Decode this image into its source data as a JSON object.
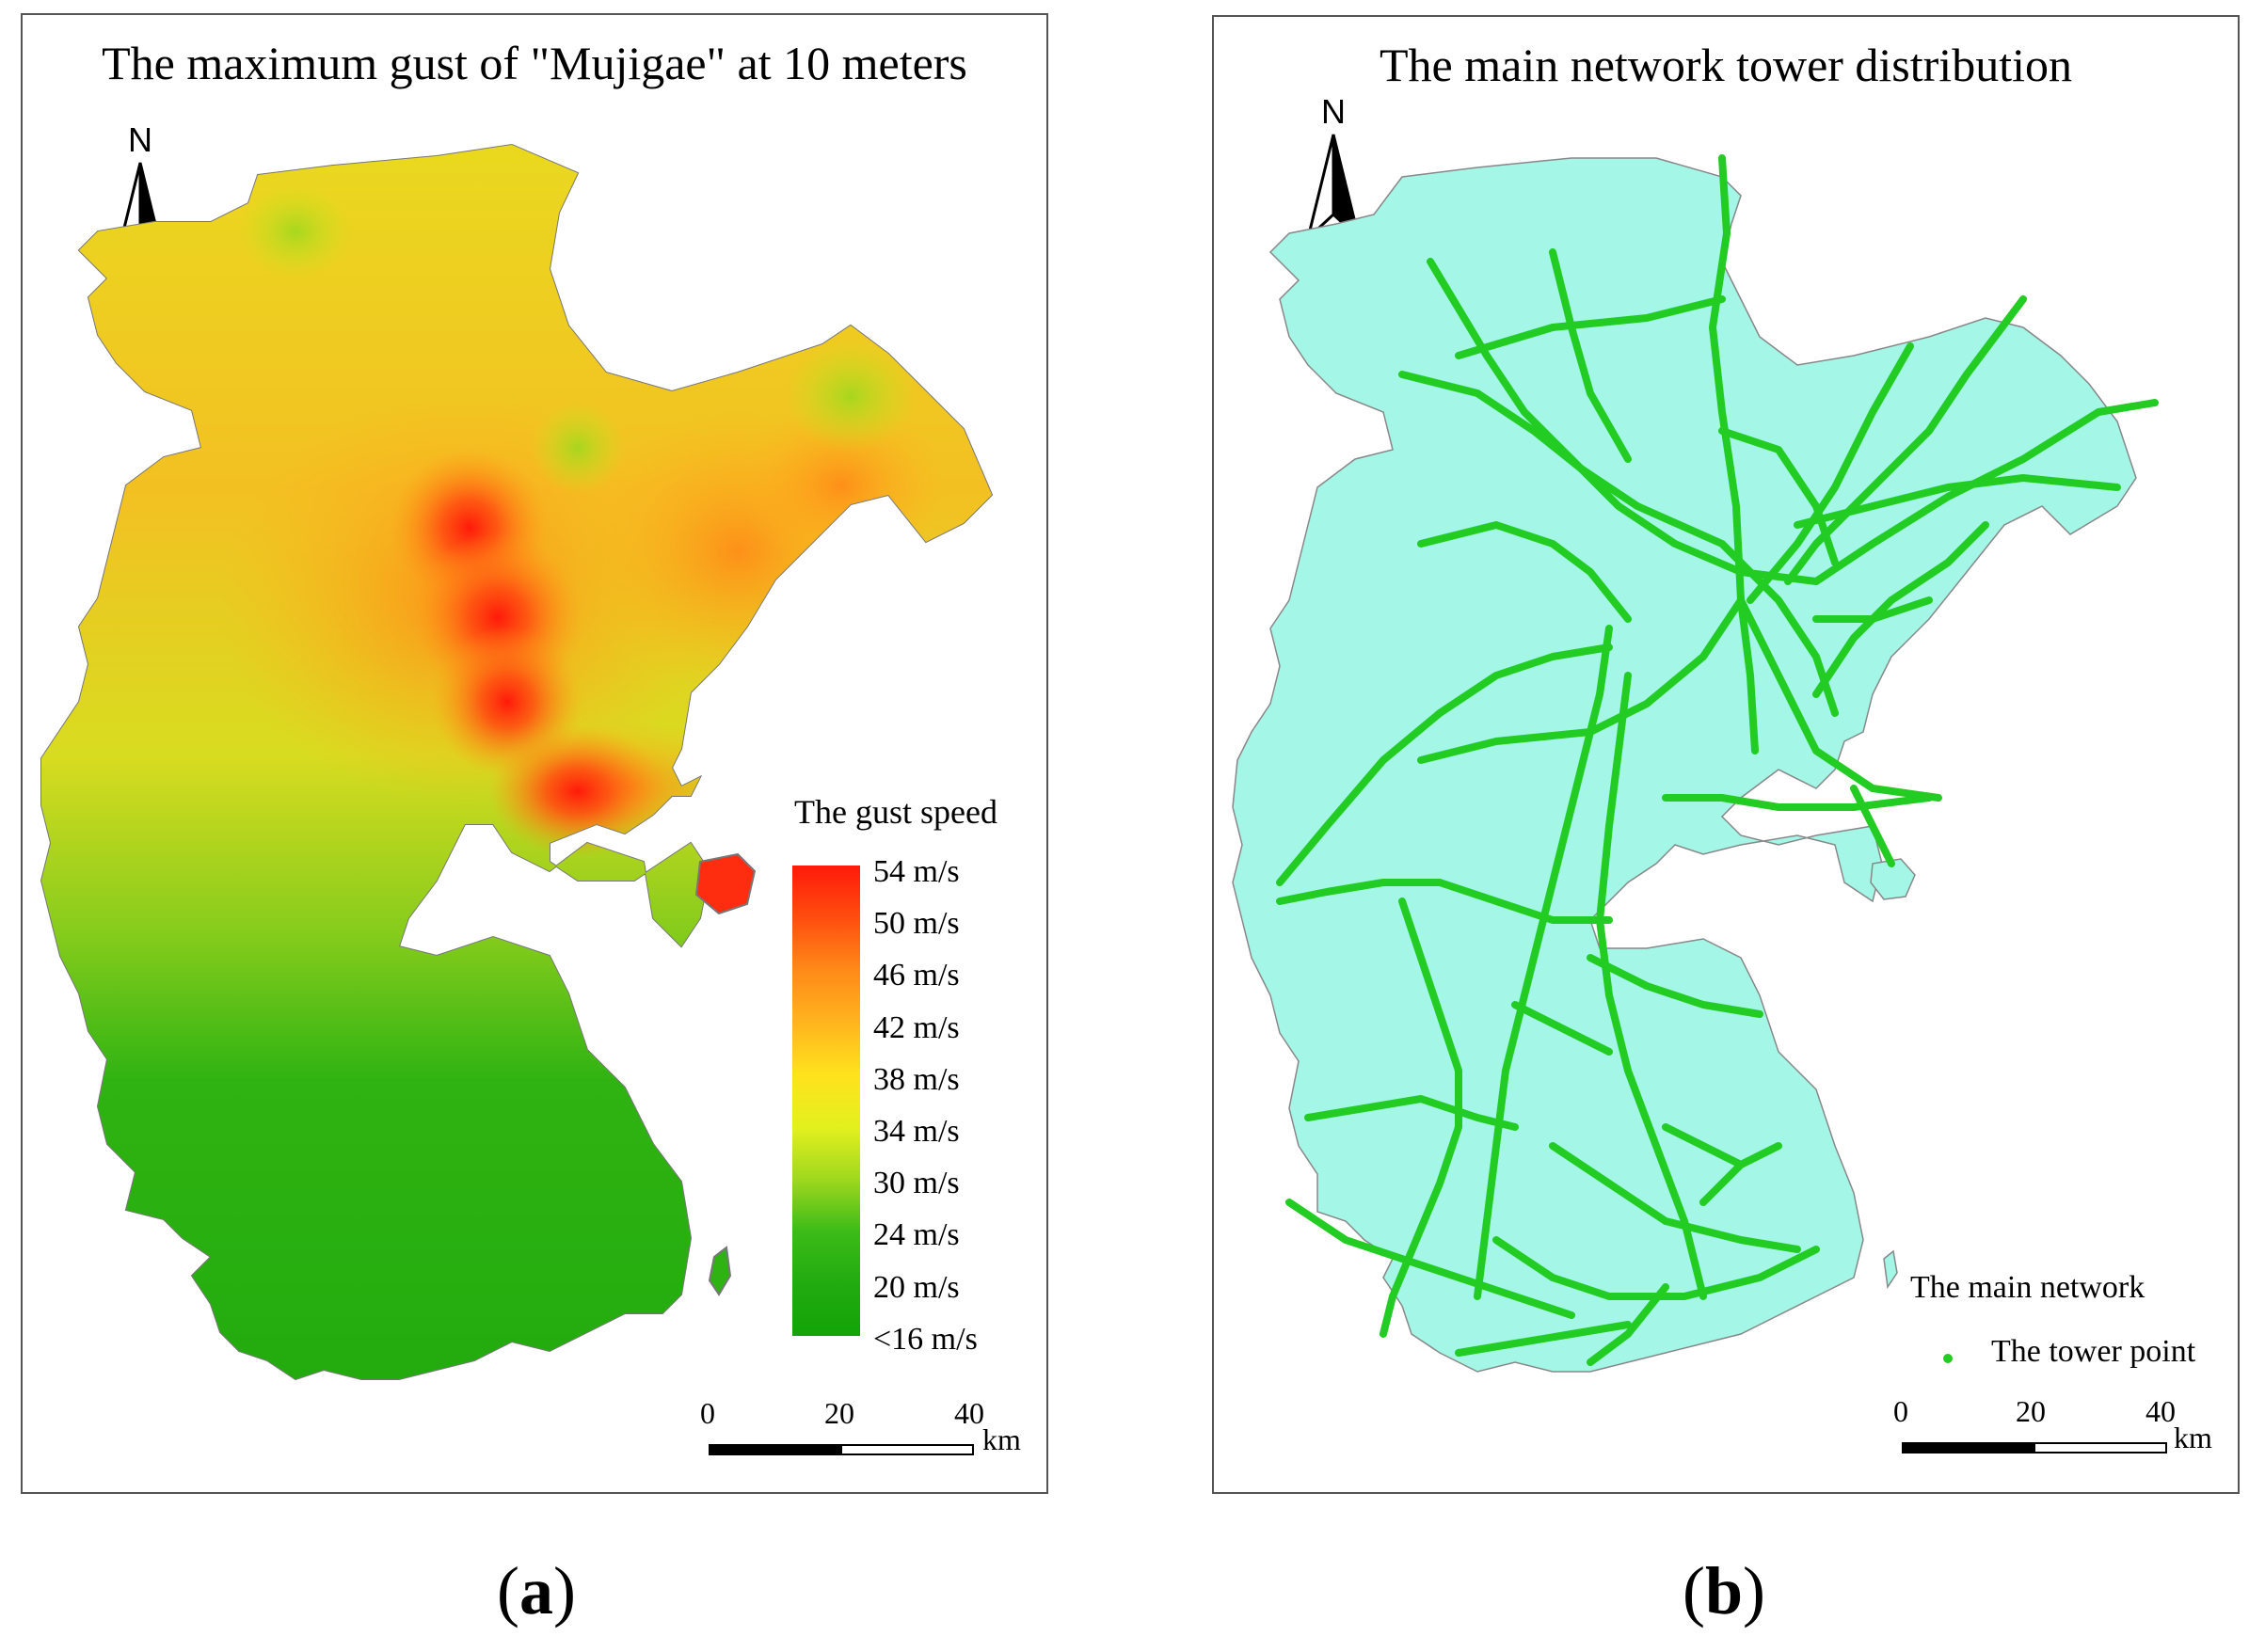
{
  "panel_a": {
    "title": "The maximum gust of \"Mujigae\" at 10 meters",
    "north_label": "N",
    "legend": {
      "title": "The gust speed",
      "ramp_labels": [
        "54 m/s",
        "50 m/s",
        "46 m/s",
        "42 m/s",
        "38 m/s",
        "34 m/s",
        "30 m/s",
        "24 m/s",
        "20 m/s",
        "<16 m/s"
      ],
      "ramp_colors": [
        "#ff1a0a",
        "#ff4d0f",
        "#ff8a18",
        "#ffb41e",
        "#ffe21e",
        "#e4f01e",
        "#9fd81e",
        "#3cbb18",
        "#22ab10",
        "#12a408"
      ]
    },
    "scale": {
      "ticks": [
        "0",
        "20",
        "40"
      ],
      "unit": "km"
    },
    "caption_letter": "a"
  },
  "panel_b": {
    "title": "The main network tower distribution",
    "north_label": "N",
    "legend": {
      "line_label": "The main network",
      "point_label": "The tower point"
    },
    "colors": {
      "land": "#a4f6e6",
      "network": "#22cc22"
    },
    "scale": {
      "ticks": [
        "0",
        "20",
        "40"
      ],
      "unit": "km"
    },
    "caption_letter": "b"
  }
}
